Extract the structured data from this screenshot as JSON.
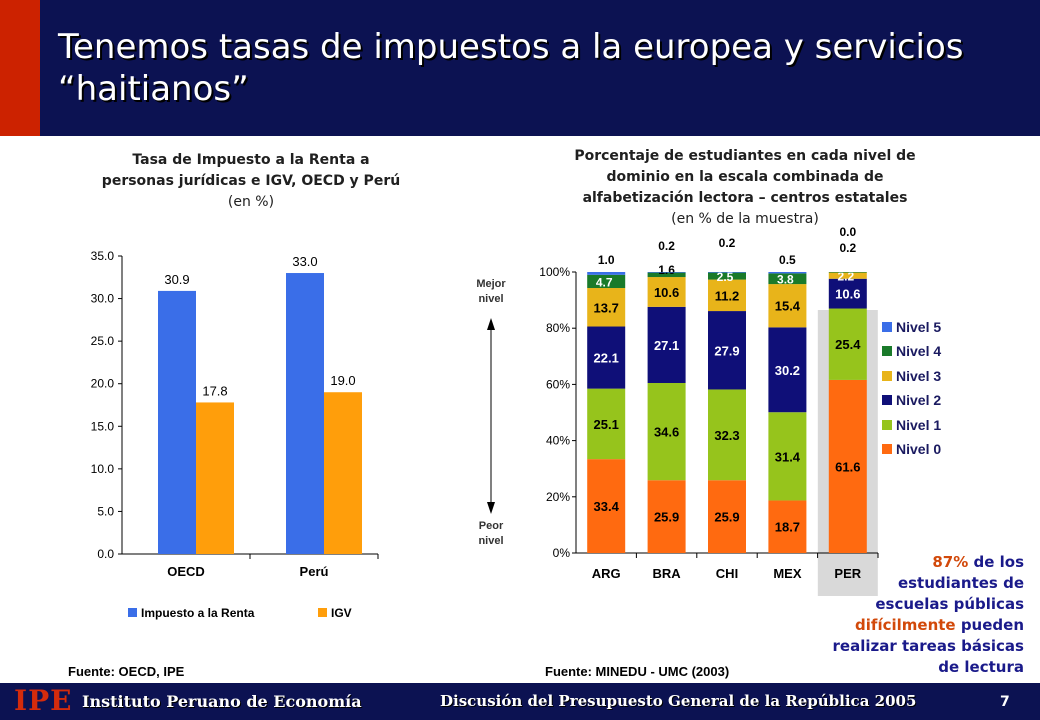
{
  "slide": {
    "title": "Tenemos tasas de impuestos a la europea y servicios “haitianos”",
    "page_number": "7"
  },
  "left_chart": {
    "title": "Tasa de Impuesto a la Renta a personas jurídicas e IGV, OECD y Perú",
    "unit": "(en %)",
    "source": "Fuente: OECD, IPE"
  },
  "right_chart": {
    "title": "Porcentaje de estudiantes en cada nivel de dominio en la escala combinada de alfabetización lectora – centros estatales",
    "unit": "(en % de la muestra)",
    "source": "Fuente: MINEDU - UMC (2003)",
    "arrow_top_label": "Mejor nivel",
    "arrow_bottom_label": "Peor nivel"
  },
  "callout": {
    "pct": "87%",
    "line1_rest": " de los",
    "line2": "estudiantes de",
    "line3": "escuelas públicas",
    "highlight": "difícilmente",
    "line4_rest": " pueden",
    "line5": "realizar tareas básicas",
    "line6": "de lectura"
  },
  "footer": {
    "logo": "IPE",
    "institute": "Instituto Peruano de Economía",
    "discussion": "Discusión del Presupuesto General de la República 2005"
  },
  "chart_data": [
    {
      "type": "bar",
      "categories": [
        "OECD",
        "Perú"
      ],
      "series": [
        {
          "name": "Impuesto a la Renta",
          "color": "#3a6ee8",
          "values": [
            30.9,
            33.0
          ]
        },
        {
          "name": "IGV",
          "color": "#ff9e0b",
          "values": [
            17.8,
            19.0
          ]
        }
      ],
      "ylim": [
        0,
        35
      ],
      "yticks": [
        "0.0",
        "5.0",
        "10.0",
        "15.0",
        "20.0",
        "25.0",
        "30.0",
        "35.0"
      ],
      "value_labels": [
        [
          "30.9",
          "33.0"
        ],
        [
          "17.8",
          "19.0"
        ]
      ],
      "legend": "bottom"
    },
    {
      "type": "bar",
      "stacked": true,
      "categories": [
        "ARG",
        "BRA",
        "CHI",
        "MEX",
        "PER"
      ],
      "highlight_category": "PER",
      "series": [
        {
          "name": "Nivel 0",
          "color": "#ff6a10",
          "values": [
            33.4,
            25.9,
            25.9,
            18.7,
            61.6
          ]
        },
        {
          "name": "Nivel 1",
          "color": "#96c41c",
          "values": [
            25.1,
            34.6,
            32.3,
            31.4,
            25.4
          ]
        },
        {
          "name": "Nivel 2",
          "color": "#0f0f78",
          "values": [
            22.1,
            27.1,
            27.9,
            30.2,
            10.6
          ]
        },
        {
          "name": "Nivel 3",
          "color": "#e8b41a",
          "values": [
            13.7,
            10.6,
            11.2,
            15.4,
            2.2
          ]
        },
        {
          "name": "Nivel 4",
          "color": "#1a7a2a",
          "values": [
            4.7,
            1.6,
            2.5,
            3.8,
            0.2
          ]
        },
        {
          "name": "Nivel 5",
          "color": "#3a6ee8",
          "values": [
            1.0,
            0.2,
            0.2,
            0.5,
            0.0
          ]
        }
      ],
      "value_labels": [
        [
          "33.4",
          "25.9",
          "25.9",
          "18.7",
          "61.6"
        ],
        [
          "25.1",
          "34.6",
          "32.3",
          "31.4",
          "25.4"
        ],
        [
          "22.1",
          "27.1",
          "27.9",
          "30.2",
          "10.6"
        ],
        [
          "13.7",
          "10.6",
          "11.2",
          "15.4",
          "2.2"
        ],
        [
          "4.7",
          "1.6",
          "2.5",
          "3.8",
          "0.2"
        ],
        [
          "1.0",
          "0.2",
          "0.2",
          "0.5",
          "0.0"
        ]
      ],
      "ylim": [
        0,
        100
      ],
      "yticks": [
        "0%",
        "20%",
        "40%",
        "60%",
        "80%",
        "100%"
      ],
      "legend": "right"
    }
  ]
}
